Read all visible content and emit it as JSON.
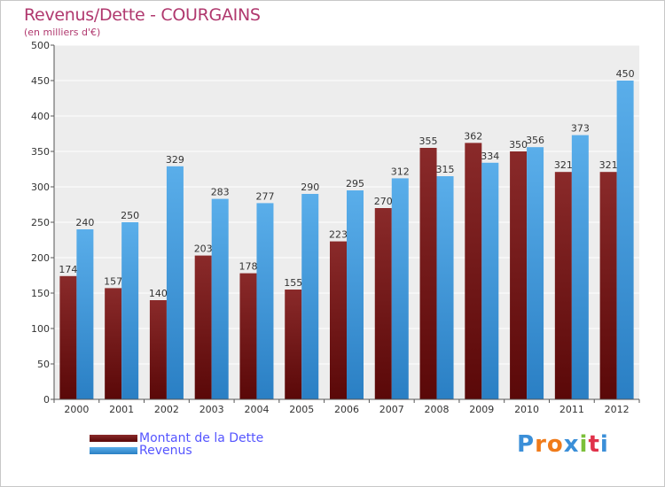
{
  "header": {
    "title": "Revenus/Dette - COURGAINS",
    "subtitle": "(en milliers d'€)"
  },
  "legend": {
    "items": [
      {
        "label": "Montant de la Dette",
        "color": "#7a1818"
      },
      {
        "label": "Revenus",
        "color": "#4aa3e6"
      }
    ]
  },
  "logo": {
    "letters": [
      "P",
      "r",
      "o",
      "x",
      "i",
      "t",
      "i"
    ],
    "colors": [
      "#3b8fd8",
      "#f07b1a",
      "#f07b1a",
      "#3b8fd8",
      "#7cc03a",
      "#e0324a",
      "#3b8fd8"
    ]
  },
  "chart_data": {
    "type": "bar",
    "categories": [
      "2000",
      "2001",
      "2002",
      "2003",
      "2004",
      "2005",
      "2006",
      "2007",
      "2008",
      "2009",
      "2010",
      "2011",
      "2012"
    ],
    "series": [
      {
        "name": "Montant de la Dette",
        "values": [
          174,
          157,
          140,
          203,
          178,
          155,
          223,
          270,
          355,
          362,
          350,
          321,
          321
        ],
        "color": "#7a1818"
      },
      {
        "name": "Revenus",
        "values": [
          240,
          250,
          329,
          283,
          277,
          290,
          295,
          312,
          315,
          334,
          356,
          373,
          450
        ],
        "color": "#4aa3e6"
      }
    ],
    "ylim": [
      0,
      500
    ],
    "yticks": [
      0,
      50,
      100,
      150,
      200,
      250,
      300,
      350,
      400,
      450,
      500
    ],
    "grid": true,
    "legend_position": "bottom-left"
  }
}
